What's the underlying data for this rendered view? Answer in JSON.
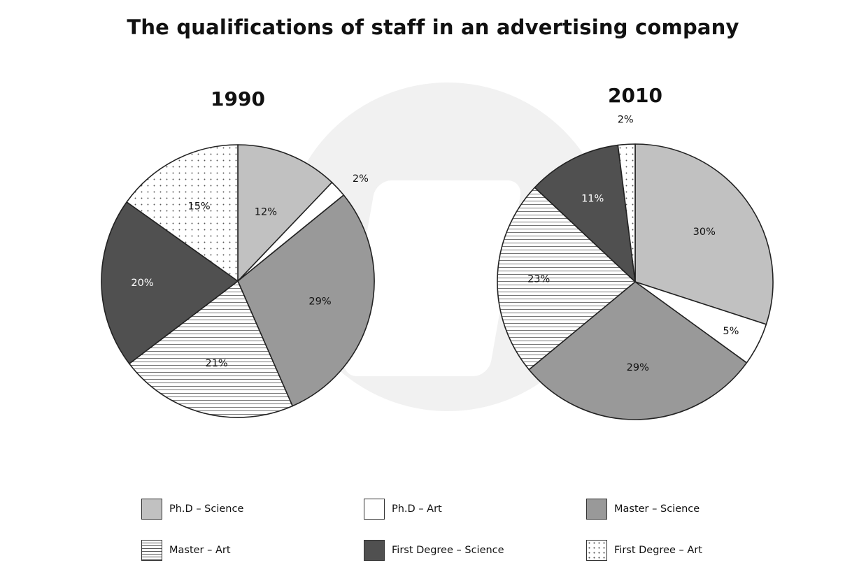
{
  "title": "The qualifications of staff in an advertising company",
  "legend": [
    {
      "label": "Ph.D – Science",
      "pattern": "solid",
      "color": "#c1c1c1"
    },
    {
      "label": "Ph.D – Art",
      "pattern": "solid",
      "color": "#ffffff"
    },
    {
      "label": "Master – Science",
      "pattern": "solid",
      "color": "#999999"
    },
    {
      "label": "Master – Art",
      "pattern": "lines",
      "color": "#ffffff"
    },
    {
      "label": "First Degree – Science",
      "pattern": "solid",
      "color": "#505050"
    },
    {
      "label": "First Degree – Art",
      "pattern": "dots",
      "color": "#ffffff"
    }
  ],
  "chart_data": [
    {
      "type": "pie",
      "title": "1990",
      "slices": [
        {
          "label": "Ph.D – Science",
          "value": 12,
          "text": "12%"
        },
        {
          "label": "Ph.D – Art",
          "value": 2,
          "text": "2%"
        },
        {
          "label": "Master – Science",
          "value": 29,
          "text": "29%"
        },
        {
          "label": "Master – Art",
          "value": 21,
          "text": "21%"
        },
        {
          "label": "First Degree – Science",
          "value": 20,
          "text": "20%"
        },
        {
          "label": "First Degree – Art",
          "value": 15,
          "text": "15%"
        }
      ]
    },
    {
      "type": "pie",
      "title": "2010",
      "slices": [
        {
          "label": "Ph.D – Science",
          "value": 30,
          "text": "30%"
        },
        {
          "label": "Ph.D – Art",
          "value": 5,
          "text": "5%"
        },
        {
          "label": "Master – Science",
          "value": 29,
          "text": "29%"
        },
        {
          "label": "Master – Art",
          "value": 23,
          "text": "23%"
        },
        {
          "label": "First Degree – Science",
          "value": 11,
          "text": "11%"
        },
        {
          "label": "First Degree – Art",
          "value": 2,
          "text": "2%"
        }
      ]
    }
  ]
}
